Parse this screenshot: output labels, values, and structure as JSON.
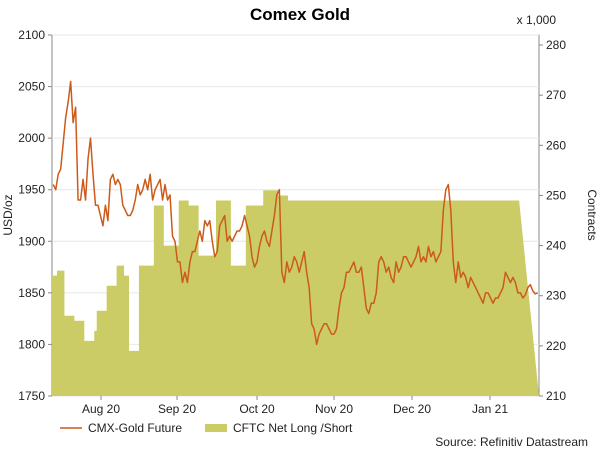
{
  "chart_data": {
    "type": "line+area",
    "title": "Comex Gold",
    "source": "Source: Refinitiv Datastream",
    "y_left": {
      "label": "USD/oz",
      "min": 1750,
      "max": 2100,
      "ticks": [
        1750,
        1800,
        1850,
        1900,
        1950,
        2000,
        2050,
        2100
      ]
    },
    "y_right": {
      "label": "Contracts",
      "multiplier": "x 1,000",
      "min": 210,
      "max": 282,
      "ticks": [
        210,
        220,
        230,
        240,
        250,
        260,
        270,
        280
      ]
    },
    "x_ticks": [
      "Aug 20",
      "Sep 20",
      "Oct 20",
      "Nov 20",
      "Dec 20",
      "Jan 21"
    ],
    "series": [
      {
        "name": "CMX-Gold Future",
        "type": "line",
        "color": "#cc5a1a",
        "axis": "left",
        "values": [
          1955,
          1950,
          1965,
          1970,
          1995,
          2020,
          2035,
          2055,
          2015,
          2030,
          1940,
          1940,
          1960,
          1940,
          1980,
          2000,
          1965,
          1935,
          1935,
          1925,
          1915,
          1935,
          1920,
          1960,
          1965,
          1955,
          1960,
          1955,
          1935,
          1930,
          1925,
          1925,
          1930,
          1940,
          1955,
          1945,
          1950,
          1960,
          1950,
          1965,
          1940,
          1950,
          1955,
          1960,
          1940,
          1955,
          1940,
          1945,
          1905,
          1900,
          1880,
          1880,
          1860,
          1870,
          1860,
          1880,
          1890,
          1890,
          1900,
          1910,
          1900,
          1920,
          1915,
          1920,
          1900,
          1885,
          1890,
          1915,
          1920,
          1925,
          1900,
          1905,
          1900,
          1905,
          1910,
          1910,
          1915,
          1925,
          1915,
          1905,
          1885,
          1875,
          1880,
          1895,
          1905,
          1910,
          1900,
          1895,
          1910,
          1925,
          1945,
          1950,
          1870,
          1860,
          1880,
          1870,
          1875,
          1885,
          1880,
          1870,
          1880,
          1890,
          1870,
          1855,
          1820,
          1815,
          1800,
          1810,
          1815,
          1820,
          1820,
          1815,
          1810,
          1810,
          1815,
          1835,
          1850,
          1855,
          1870,
          1870,
          1875,
          1880,
          1870,
          1870,
          1875,
          1855,
          1835,
          1830,
          1840,
          1840,
          1850,
          1880,
          1885,
          1880,
          1870,
          1875,
          1865,
          1860,
          1880,
          1870,
          1875,
          1885,
          1885,
          1880,
          1875,
          1880,
          1885,
          1895,
          1880,
          1885,
          1880,
          1895,
          1885,
          1890,
          1880,
          1885,
          1890,
          1930,
          1950,
          1955,
          1930,
          1880,
          1860,
          1880,
          1865,
          1870,
          1865,
          1855,
          1865,
          1860,
          1855,
          1850,
          1845,
          1840,
          1850,
          1850,
          1845,
          1840,
          1845,
          1845,
          1850,
          1855,
          1870,
          1865,
          1860,
          1865,
          1860,
          1850,
          1850,
          1845,
          1848,
          1855,
          1858,
          1852,
          1849,
          1850
        ]
      },
      {
        "name": "CFTC Net Long /Short",
        "type": "area",
        "color": "#cccc66",
        "axis": "right",
        "values": [
          234,
          234,
          235,
          235,
          235,
          226,
          226,
          226,
          226,
          225,
          225,
          225,
          225,
          221,
          221,
          221,
          221,
          223,
          227,
          227,
          227,
          227,
          232,
          232,
          232,
          232,
          236,
          236,
          236,
          234,
          234,
          219,
          219,
          219,
          219,
          236,
          236,
          236,
          236,
          236,
          236,
          248,
          248,
          248,
          248,
          240,
          240,
          240,
          240,
          240,
          240,
          249,
          249,
          249,
          249,
          248,
          248,
          248,
          248,
          238,
          238,
          238,
          238,
          238,
          238,
          238,
          249,
          249,
          249,
          249,
          249,
          249,
          236,
          236,
          236,
          236,
          236,
          236,
          248,
          248,
          248,
          248,
          248,
          248,
          248,
          251,
          251,
          251,
          251,
          251,
          251,
          250,
          250,
          250,
          250,
          249,
          249,
          249,
          249,
          249,
          249,
          249,
          249,
          249,
          249,
          249,
          249,
          249,
          249,
          249,
          249,
          249,
          249,
          249,
          249,
          249,
          249,
          249,
          249,
          249,
          249,
          249,
          249,
          249,
          249,
          249,
          249,
          249,
          249,
          249,
          249,
          249,
          249,
          249,
          249,
          249,
          249,
          249,
          249,
          249,
          249,
          249,
          249,
          249,
          249,
          249,
          249,
          249,
          249,
          249,
          249,
          249,
          249,
          249,
          249,
          249,
          249,
          249,
          249,
          249,
          249,
          249,
          249,
          249,
          249,
          249,
          249,
          249,
          249,
          249,
          249,
          249,
          249,
          249,
          249,
          249,
          249,
          249,
          249,
          249,
          249,
          249,
          249,
          249,
          249,
          249,
          249,
          249
        ]
      }
    ]
  }
}
